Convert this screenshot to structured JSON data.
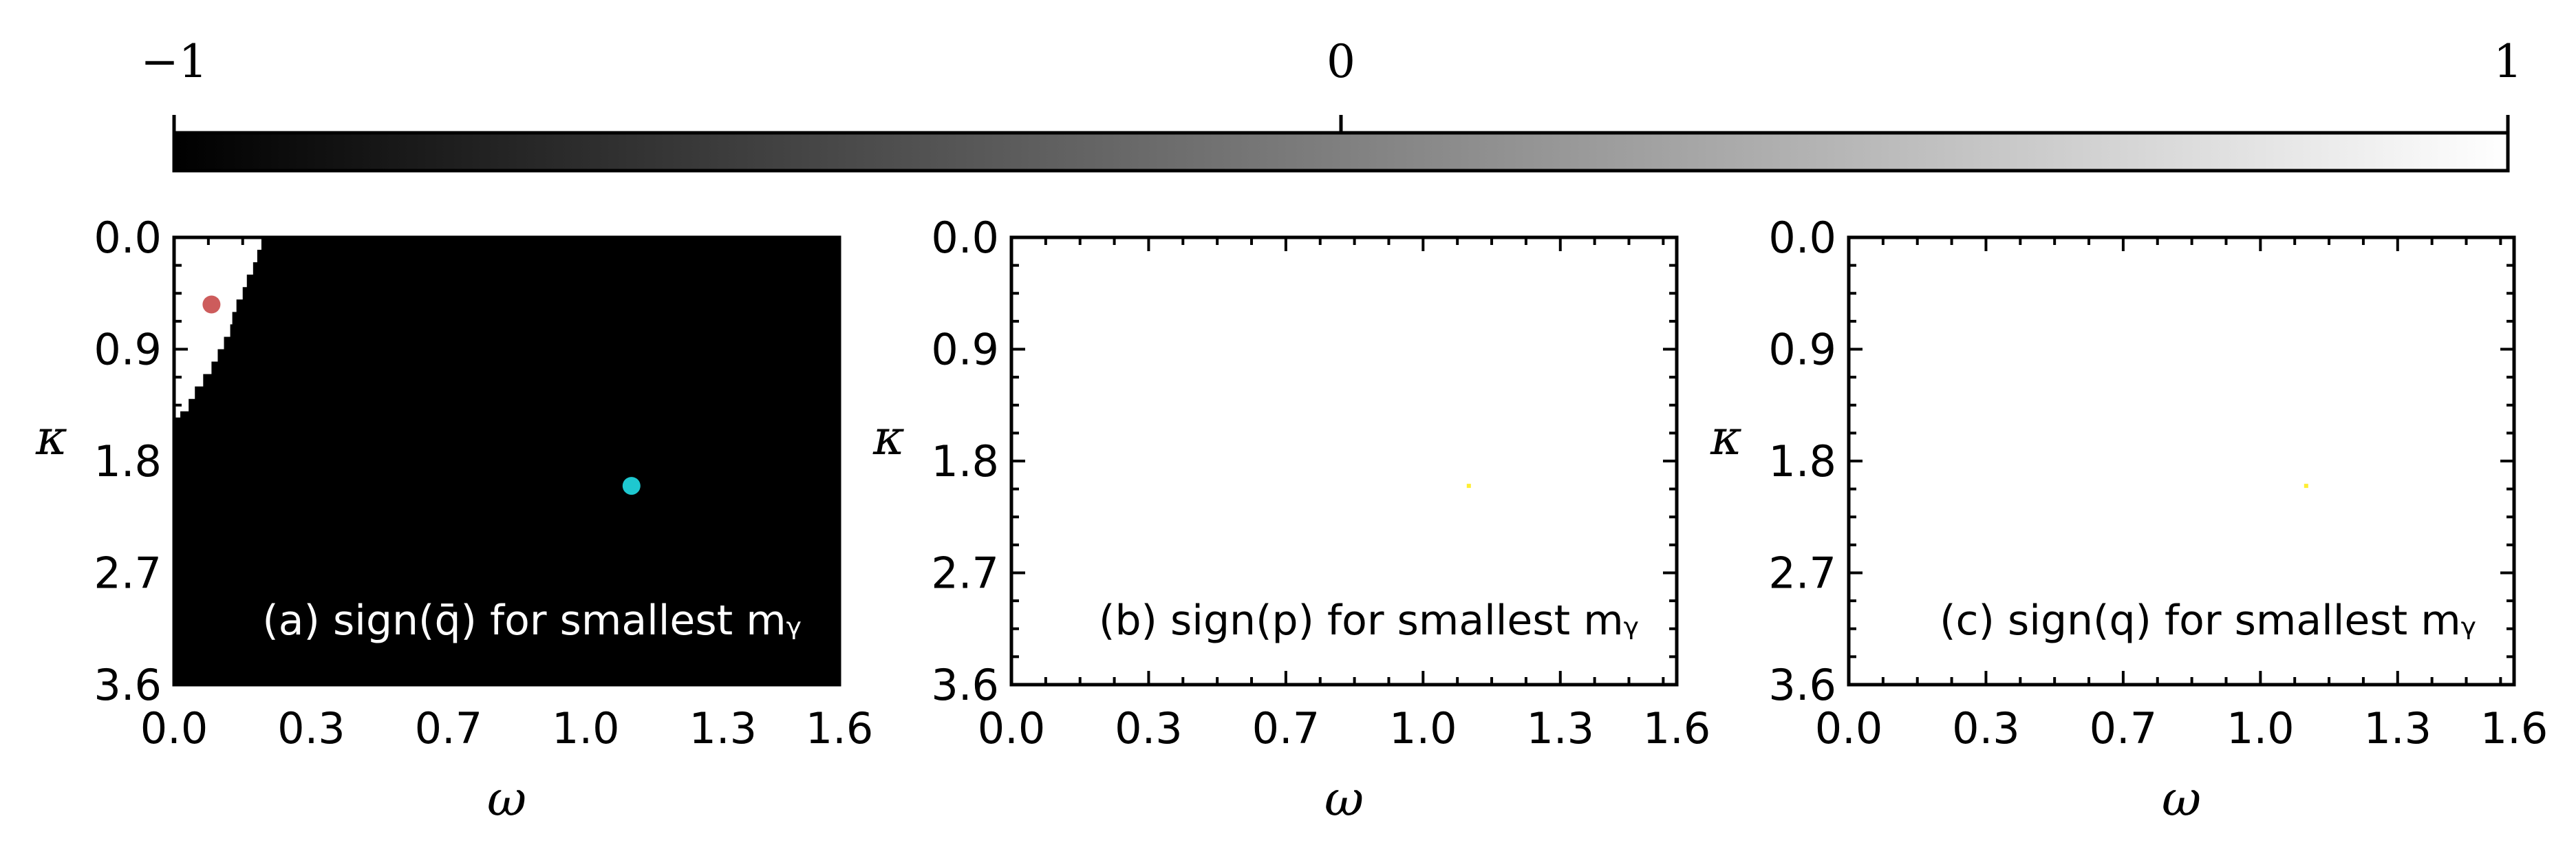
{
  "colorbar": {
    "min": -1,
    "max": 1,
    "colormap": [
      "#000000",
      "#ffffff"
    ],
    "ticks": [
      {
        "value": -1,
        "label": "−1"
      },
      {
        "value": 0,
        "label": "0"
      },
      {
        "value": 1,
        "label": "1"
      }
    ]
  },
  "chart_data": [
    {
      "type": "heatmap",
      "panel": "a",
      "label": "(a) sign(q̄) for smallest mᵧ",
      "label_color": "#ffffff",
      "xlabel": "ω",
      "ylabel": "κ",
      "xlim": [
        0.0,
        1.6
      ],
      "ylim": [
        3.6,
        0.0
      ],
      "y_inverted": true,
      "xticks": [
        0.0,
        0.33,
        0.66,
        0.99,
        1.32,
        1.65
      ],
      "xtick_labels": [
        "0.0",
        "0.3",
        "0.7",
        "1.0",
        "1.3",
        "1.6"
      ],
      "yticks": [
        0.0,
        0.9,
        1.8,
        2.7,
        3.6
      ],
      "ytick_labels": [
        "0.0",
        "0.9",
        "1.8",
        "2.7",
        "3.6"
      ],
      "background_value": -1,
      "positive_region_value": 1,
      "positive_region_boundary": {
        "kappa": [
          0.0,
          0.1,
          0.2,
          0.3,
          0.4,
          0.5,
          0.6,
          0.7,
          0.8,
          0.9,
          1.0,
          1.1,
          1.2,
          1.3,
          1.4,
          1.45
        ],
        "omega": [
          0.21,
          0.2,
          0.19,
          0.175,
          0.165,
          0.15,
          0.14,
          0.135,
          0.12,
          0.105,
          0.09,
          0.07,
          0.05,
          0.035,
          0.015,
          0.0
        ]
      },
      "markers": [
        {
          "omega": 0.09,
          "kappa": 0.54,
          "color": "#cd5c5c"
        },
        {
          "omega": 1.1,
          "kappa": 2.0,
          "color": "#1ec8d0"
        }
      ]
    },
    {
      "type": "heatmap",
      "panel": "b",
      "label": "(b) sign(p) for smallest mᵧ",
      "label_color": "#000000",
      "xlabel": "ω",
      "ylabel": "κ",
      "xlim": [
        0.0,
        1.6
      ],
      "ylim": [
        3.6,
        0.0
      ],
      "y_inverted": true,
      "xticks": [
        0.0,
        0.33,
        0.66,
        0.99,
        1.32,
        1.65
      ],
      "xtick_labels": [
        "0.0",
        "0.3",
        "0.7",
        "1.0",
        "1.3",
        "1.6"
      ],
      "yticks": [
        0.0,
        0.9,
        1.8,
        2.7,
        3.6
      ],
      "ytick_labels": [
        "0.0",
        "0.9",
        "1.8",
        "2.7",
        "3.6"
      ],
      "background_value": 1,
      "markers": [
        {
          "omega": 1.1,
          "kappa": 2.0,
          "color": "#ffee33"
        }
      ]
    },
    {
      "type": "heatmap",
      "panel": "c",
      "label": "(c) sign(q) for smallest mᵧ",
      "label_color": "#000000",
      "xlabel": "ω",
      "ylabel": "κ",
      "xlim": [
        0.0,
        1.6
      ],
      "ylim": [
        3.6,
        0.0
      ],
      "y_inverted": true,
      "xticks": [
        0.0,
        0.33,
        0.66,
        0.99,
        1.32,
        1.65
      ],
      "xtick_labels": [
        "0.0",
        "0.3",
        "0.7",
        "1.0",
        "1.3",
        "1.6"
      ],
      "yticks": [
        0.0,
        0.9,
        1.8,
        2.7,
        3.6
      ],
      "ytick_labels": [
        "0.0",
        "0.9",
        "1.8",
        "2.7",
        "3.6"
      ],
      "background_value": 1,
      "markers": [
        {
          "omega": 1.1,
          "kappa": 2.0,
          "color": "#ffee33"
        }
      ]
    }
  ]
}
